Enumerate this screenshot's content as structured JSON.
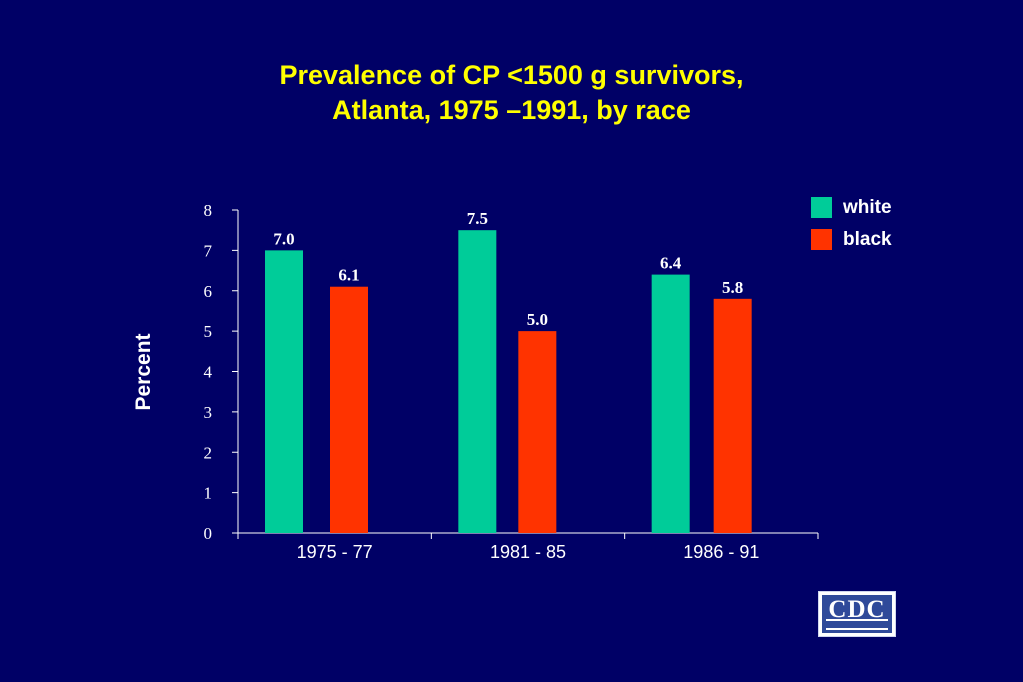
{
  "title": {
    "line1": "Prevalence of CP <1500 g survivors,",
    "line2": "Atlanta, 1975 –1991, by race"
  },
  "chart_data": {
    "type": "bar",
    "categories": [
      "1975 - 77",
      "1981 - 85",
      "1986 - 91"
    ],
    "series": [
      {
        "name": "white",
        "values": [
          7.0,
          7.5,
          6.4
        ],
        "labels": [
          "7.0",
          "7.5",
          "6.4"
        ],
        "color": "#00cc99"
      },
      {
        "name": "black",
        "values": [
          6.1,
          5.0,
          5.8
        ],
        "labels": [
          "6.1",
          "5.0",
          "5.8"
        ],
        "color": "#ff3300"
      }
    ],
    "ylabel": "Percent",
    "xlabel": "",
    "ylim": [
      0,
      8
    ],
    "yticks": [
      0,
      1,
      2,
      3,
      4,
      5,
      6,
      7,
      8
    ],
    "legend_position": "top-right",
    "grid": false
  },
  "logo": {
    "text": "CDC"
  },
  "colors": {
    "background": "#000066",
    "title": "#ffff00",
    "text": "#ffffff"
  }
}
